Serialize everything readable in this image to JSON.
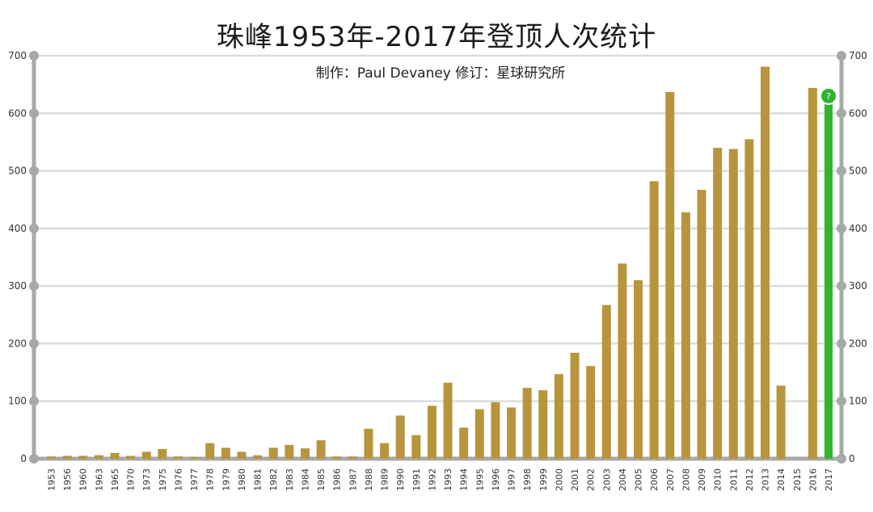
{
  "title": "珠峰1953年-2017年登顶人次统计",
  "subtitle": "制作：Paul Devaney  修订：星球研究所",
  "colors": {
    "bar": "#b8953c",
    "highlight": "#2fb52f",
    "axis": "#a8a8a8",
    "grid": "#dcdcdc"
  },
  "chart_data": {
    "type": "bar",
    "title": "珠峰1953年-2017年登顶人次统计",
    "subtitle": "制作：Paul Devaney  修订：星球研究所",
    "xlabel": "",
    "ylabel": "",
    "ylim": [
      0,
      700
    ],
    "yticks": [
      "0",
      "100",
      "200",
      "300",
      "400",
      "500",
      "600",
      "700"
    ],
    "grid": true,
    "dual_y_axis": true,
    "categories": [
      "1953",
      "1956",
      "1960",
      "1963",
      "1965",
      "1970",
      "1973",
      "1975",
      "1976",
      "1977",
      "1978",
      "1979",
      "1980",
      "1981",
      "1982",
      "1983",
      "1984",
      "1985",
      "1986",
      "1987",
      "1988",
      "1989",
      "1990",
      "1991",
      "1992",
      "1993",
      "1994",
      "1995",
      "1996",
      "1997",
      "1998",
      "1999",
      "2000",
      "2001",
      "2002",
      "2003",
      "2004",
      "2005",
      "2006",
      "2007",
      "2008",
      "2009",
      "2010",
      "2011",
      "2012",
      "2013",
      "2014",
      "2015",
      "2016",
      "2017"
    ],
    "values": [
      4,
      5,
      5,
      6,
      10,
      5,
      12,
      17,
      4,
      3,
      27,
      19,
      12,
      6,
      19,
      24,
      18,
      32,
      4,
      4,
      52,
      27,
      75,
      41,
      92,
      132,
      54,
      86,
      98,
      89,
      123,
      119,
      147,
      184,
      161,
      267,
      339,
      310,
      482,
      637,
      428,
      467,
      540,
      538,
      555,
      681,
      127,
      0,
      644,
      630
    ],
    "highlight": {
      "category": "2017",
      "marker": "?"
    }
  }
}
